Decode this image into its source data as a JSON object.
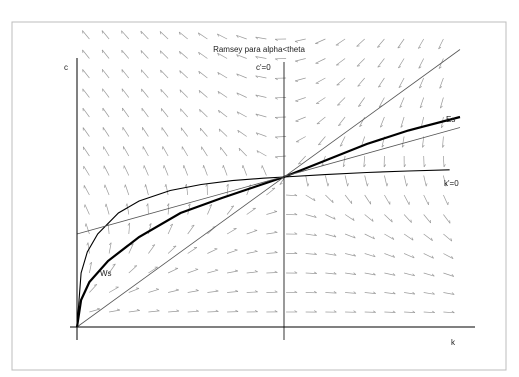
{
  "chart_data": {
    "type": "phase-diagram",
    "title": "Ramsey para alpha<theta",
    "xlabel": "k",
    "ylabel": "c",
    "xlim": [
      0,
      1.9
    ],
    "ylim": [
      0,
      1.0
    ],
    "steady_state": {
      "k": 1.0,
      "c": 0.5
    },
    "annotations": {
      "c_dot_zero": "c'=0",
      "k_dot_zero": "k'=0",
      "stable_arm": "Es",
      "unstable_arm": "Ws"
    },
    "curves": [
      {
        "id": "k_dot_zero_curve",
        "description": "k'=0 locus",
        "k": [
          0.0,
          0.02,
          0.05,
          0.1,
          0.2,
          0.3,
          0.45,
          0.6,
          0.75,
          0.9,
          1.0,
          1.2,
          1.4,
          1.6,
          1.8
        ],
        "c": [
          0.0,
          0.18,
          0.25,
          0.31,
          0.38,
          0.42,
          0.455,
          0.475,
          0.488,
          0.496,
          0.5,
          0.508,
          0.515,
          0.52,
          0.524
        ]
      },
      {
        "id": "saddle_path",
        "description": "saddle path (bold)",
        "k": [
          0.0,
          0.02,
          0.06,
          0.15,
          0.3,
          0.5,
          0.7,
          0.85,
          1.0,
          1.2,
          1.4,
          1.6,
          1.85
        ],
        "c": [
          0.0,
          0.09,
          0.15,
          0.22,
          0.3,
          0.38,
          0.43,
          0.465,
          0.5,
          0.555,
          0.61,
          0.655,
          0.7
        ]
      },
      {
        "id": "diagonal",
        "description": "45-degree line through origin",
        "k": [
          0.0,
          1.85
        ],
        "c": [
          0.0,
          0.925
        ]
      },
      {
        "id": "rotated_line",
        "description": "thin line through steady state",
        "k": [
          0.0,
          1.85
        ],
        "c": [
          0.31,
          0.665
        ]
      }
    ]
  }
}
